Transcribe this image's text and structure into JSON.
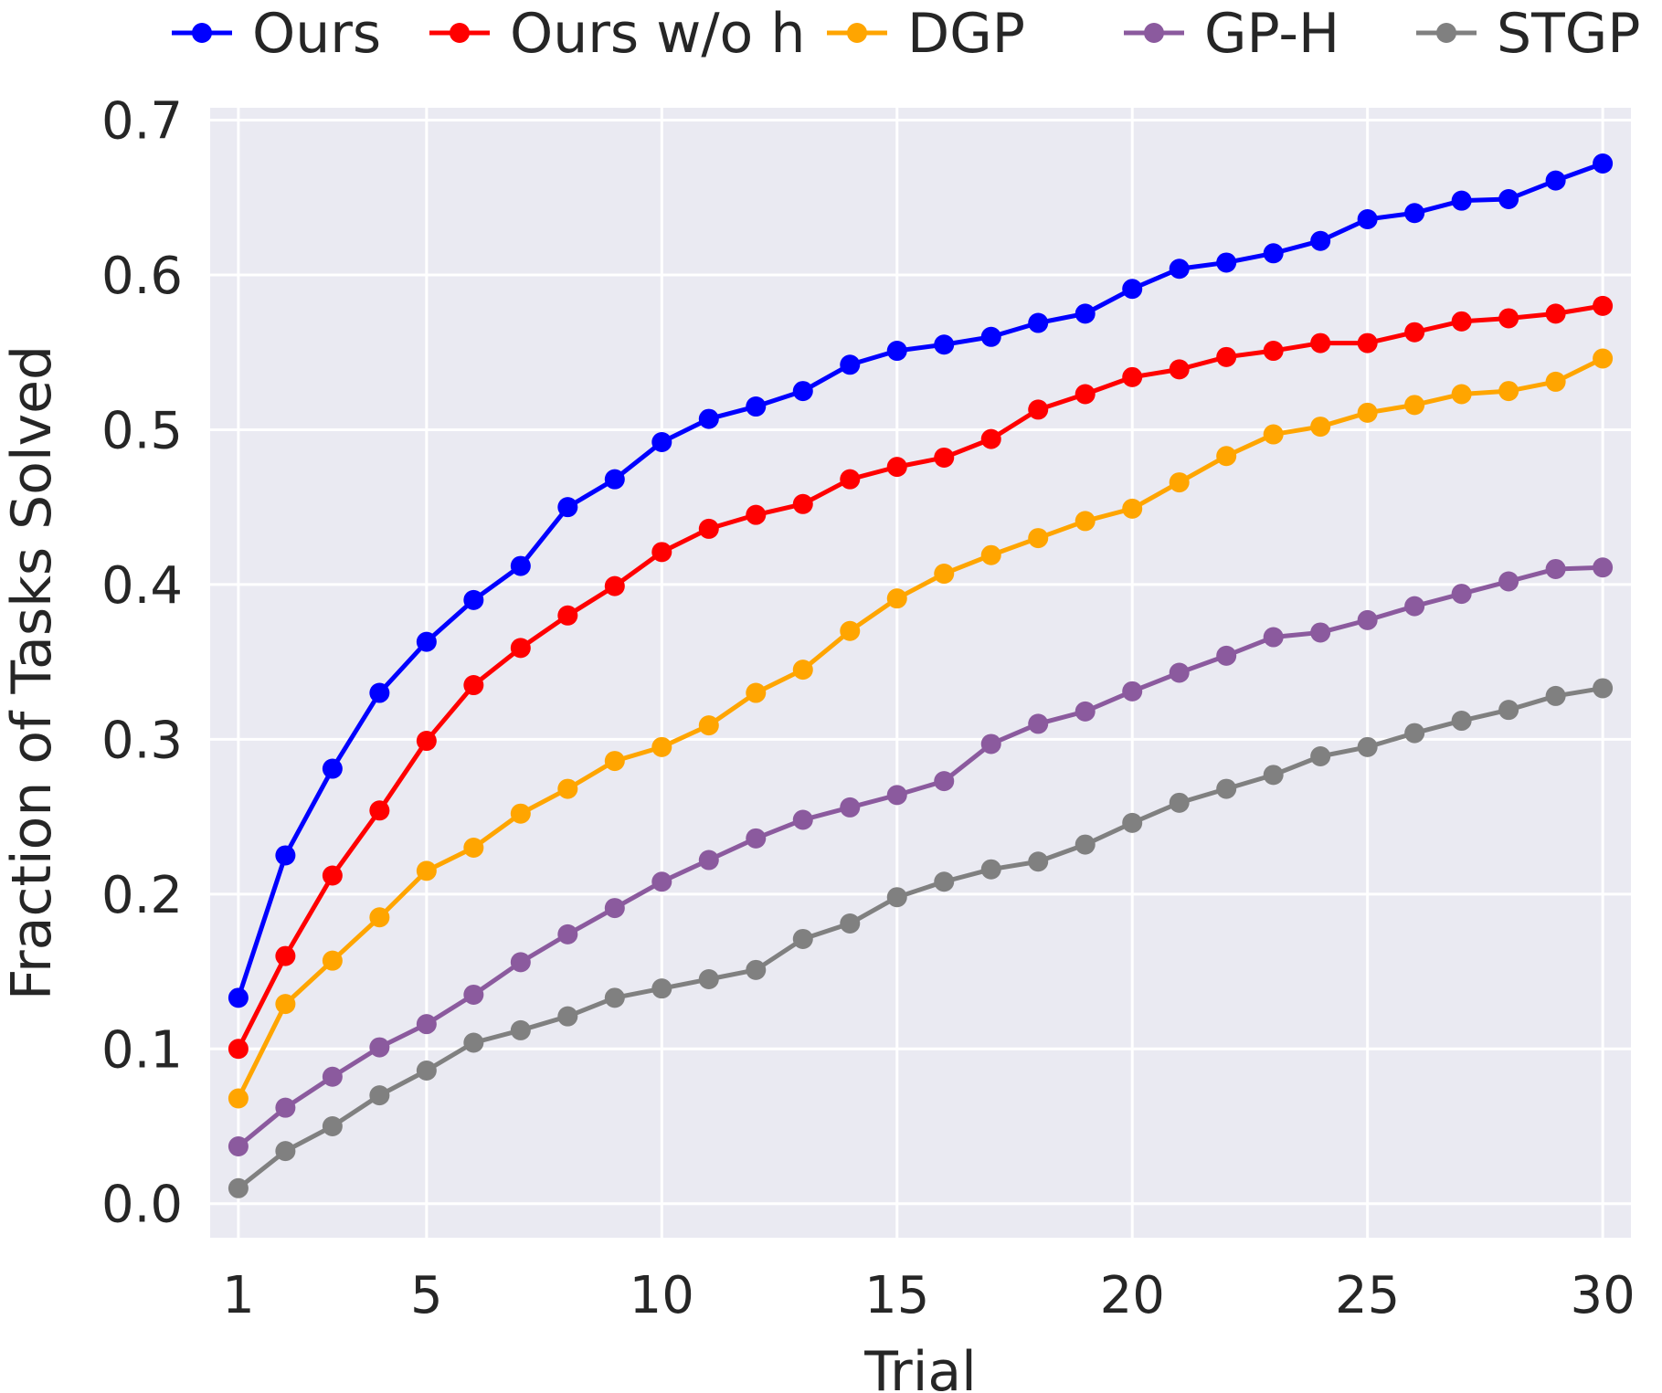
{
  "chart_data": {
    "type": "line",
    "title": "",
    "xlabel": "Trial",
    "ylabel": "Fraction of Tasks Solved",
    "xlim": [
      0.4,
      30.6
    ],
    "ylim": [
      -0.022,
      0.708
    ],
    "x": [
      1,
      2,
      3,
      4,
      5,
      6,
      7,
      8,
      9,
      10,
      11,
      12,
      13,
      14,
      15,
      16,
      17,
      18,
      19,
      20,
      21,
      22,
      23,
      24,
      25,
      26,
      27,
      28,
      29,
      30
    ],
    "xticks": [
      1,
      5,
      10,
      15,
      20,
      25,
      30
    ],
    "xtick_labels": [
      "1",
      "5",
      "10",
      "15",
      "20",
      "25",
      "30"
    ],
    "yticks": [
      0.0,
      0.1,
      0.2,
      0.3,
      0.4,
      0.5,
      0.6,
      0.7
    ],
    "ytick_labels": [
      "0.0",
      "0.1",
      "0.2",
      "0.3",
      "0.4",
      "0.5",
      "0.6",
      "0.7"
    ],
    "grid": true,
    "legend_position": "top",
    "colors": {
      "background": "#eaeaf2",
      "grid": "#ffffff",
      "text": "#262626"
    },
    "series": [
      {
        "name": "Ours",
        "color": "#0000ff",
        "values": [
          0.133,
          0.225,
          0.281,
          0.33,
          0.363,
          0.39,
          0.412,
          0.45,
          0.468,
          0.492,
          0.507,
          0.515,
          0.525,
          0.542,
          0.551,
          0.555,
          0.56,
          0.569,
          0.575,
          0.591,
          0.604,
          0.608,
          0.614,
          0.622,
          0.636,
          0.64,
          0.648,
          0.649,
          0.661,
          0.672
        ]
      },
      {
        "name": "Ours w/o h",
        "color": "#ff0000",
        "values": [
          0.1,
          0.16,
          0.212,
          0.254,
          0.299,
          0.335,
          0.359,
          0.38,
          0.399,
          0.421,
          0.436,
          0.445,
          0.452,
          0.468,
          0.476,
          0.482,
          0.494,
          0.513,
          0.523,
          0.534,
          0.539,
          0.547,
          0.551,
          0.556,
          0.556,
          0.563,
          0.57,
          0.572,
          0.575,
          0.58
        ]
      },
      {
        "name": "DGP",
        "color": "#ffa500",
        "values": [
          0.068,
          0.129,
          0.157,
          0.185,
          0.215,
          0.23,
          0.252,
          0.268,
          0.286,
          0.295,
          0.309,
          0.33,
          0.345,
          0.37,
          0.391,
          0.407,
          0.419,
          0.43,
          0.441,
          0.449,
          0.466,
          0.483,
          0.497,
          0.502,
          0.511,
          0.516,
          0.523,
          0.525,
          0.531,
          0.546
        ]
      },
      {
        "name": "GP-H",
        "color": "#8b5a9e",
        "values": [
          0.037,
          0.062,
          0.082,
          0.101,
          0.116,
          0.135,
          0.156,
          0.174,
          0.191,
          0.208,
          0.222,
          0.236,
          0.248,
          0.256,
          0.264,
          0.273,
          0.297,
          0.31,
          0.318,
          0.331,
          0.343,
          0.354,
          0.366,
          0.369,
          0.377,
          0.386,
          0.394,
          0.402,
          0.41,
          0.411
        ]
      },
      {
        "name": "STGP",
        "color": "#808080",
        "values": [
          0.01,
          0.034,
          0.05,
          0.07,
          0.086,
          0.104,
          0.112,
          0.121,
          0.133,
          0.139,
          0.145,
          0.151,
          0.171,
          0.181,
          0.198,
          0.208,
          0.216,
          0.221,
          0.232,
          0.246,
          0.259,
          0.268,
          0.277,
          0.289,
          0.295,
          0.304,
          0.312,
          0.319,
          0.328,
          0.333
        ]
      }
    ]
  }
}
